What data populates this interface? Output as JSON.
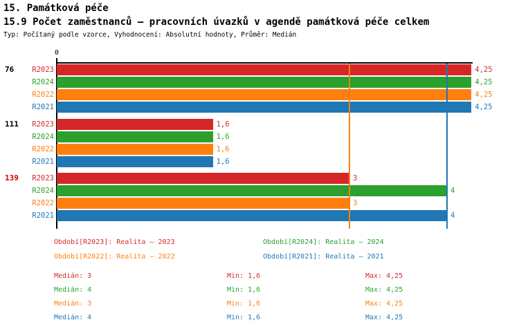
{
  "header": {
    "title": "15. Památková péče",
    "subtitle": "15.9 Počet zaměstnanců – pracovních úvazků v agendě památková péče celkem",
    "meta": "Typ: Počítaný podle vzorce, Vyhodnocení: Absolutní hodnoty, Průměr: Medián"
  },
  "chart_data": {
    "type": "bar",
    "orientation": "horizontal",
    "title": "15.9 Počet zaměstnanců – pracovních úvazků v agendě památková péče celkem",
    "x_axis": {
      "min": 0,
      "max": 4.25,
      "zero_tick_label": "0",
      "grid": false
    },
    "series": [
      {
        "name": "R2023",
        "color": "#d62728",
        "legend_label": "Období[R2023]: Realita – 2023",
        "median": 3,
        "median_label": "Medián: 3",
        "min_label": "Min: 1,6",
        "max_label": "Max: 4,25"
      },
      {
        "name": "R2024",
        "color": "#2ca02c",
        "legend_label": "Období[R2024]: Realita – 2024",
        "median": 4,
        "median_label": "Medián: 4",
        "min_label": "Min: 1,6",
        "max_label": "Max: 4,25"
      },
      {
        "name": "R2022",
        "color": "#ff7f0e",
        "legend_label": "Období[R2022]: Realita – 2022",
        "median": 3,
        "median_label": "Medián: 3",
        "min_label": "Min: 1,6",
        "max_label": "Max: 4,25"
      },
      {
        "name": "R2021",
        "color": "#1f77b4",
        "legend_label": "Období[R2021]: Realita – 2021",
        "median": 4,
        "median_label": "Medián: 4",
        "min_label": "Min: 1,6",
        "max_label": "Max: 4,25"
      }
    ],
    "groups": [
      {
        "label": "76",
        "label_color": "#000000",
        "values": [
          4.25,
          4.25,
          4.25,
          4.25
        ],
        "value_labels": [
          "4,25",
          "4,25",
          "4,25",
          "4,25"
        ]
      },
      {
        "label": "111",
        "label_color": "#000000",
        "values": [
          1.6,
          1.6,
          1.6,
          1.6
        ],
        "value_labels": [
          "1,6",
          "1,6",
          "1,6",
          "1,6"
        ]
      },
      {
        "label": "139",
        "label_color": "#dd0000",
        "values": [
          3,
          4,
          3,
          4
        ],
        "value_labels": [
          "3",
          "4",
          "3",
          "4"
        ]
      }
    ],
    "median_lines": [
      {
        "value": 3,
        "color": "#ff7f0e"
      },
      {
        "value": 4,
        "color": "#1f77b4"
      }
    ]
  }
}
